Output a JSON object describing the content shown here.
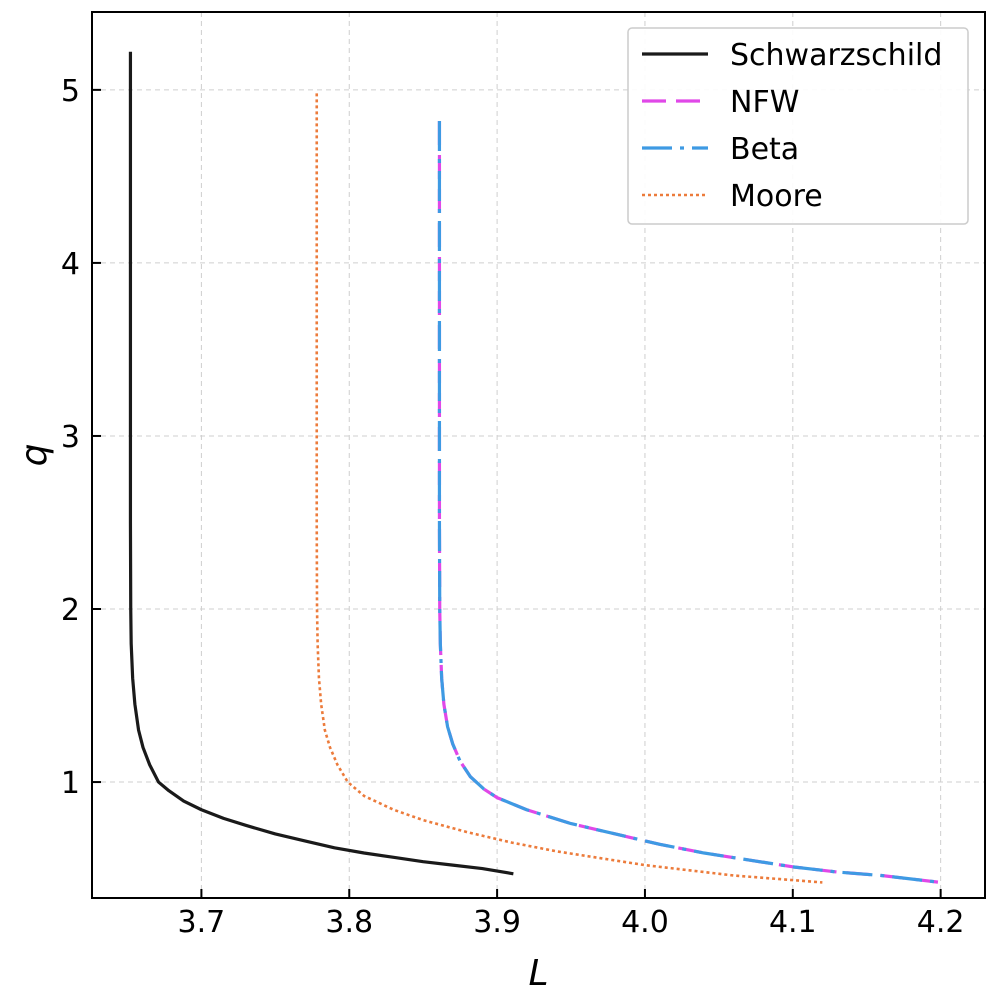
{
  "chart_data": {
    "type": "line",
    "xlabel": "L",
    "ylabel": "q",
    "xlim": [
      3.626,
      4.23
    ],
    "ylim": [
      0.33,
      5.45
    ],
    "grid": true,
    "legend_position": "top-right",
    "x_ticks": [
      "3.7",
      "3.8",
      "3.9",
      "4.0",
      "4.1",
      "4.2"
    ],
    "y_ticks": [
      "1",
      "2",
      "3",
      "4",
      "5"
    ],
    "series": [
      {
        "name": "Schwarzschild",
        "color": "#1a1a1a",
        "style": "solid",
        "x": [
          3.652,
          3.652,
          3.652,
          3.652,
          3.6522,
          3.6525,
          3.6535,
          3.655,
          3.6575,
          3.6605,
          3.665,
          3.671,
          3.678,
          3.688,
          3.7,
          3.715,
          3.73,
          3.75,
          3.77,
          3.79,
          3.81,
          3.83,
          3.85,
          3.87,
          3.89,
          3.911
        ],
        "y": [
          5.22,
          4.5,
          3.5,
          2.5,
          2.0,
          1.8,
          1.6,
          1.45,
          1.3,
          1.2,
          1.1,
          1.0,
          0.95,
          0.89,
          0.84,
          0.79,
          0.75,
          0.7,
          0.66,
          0.62,
          0.59,
          0.565,
          0.54,
          0.52,
          0.5,
          0.47
        ]
      },
      {
        "name": "NFW",
        "color": "#e048e8",
        "style": "dashed",
        "x": [
          3.861,
          3.861,
          3.861,
          3.861,
          3.8612,
          3.8616,
          3.8625,
          3.864,
          3.8665,
          3.87,
          3.875,
          3.882,
          3.891,
          3.9,
          3.92,
          3.95,
          3.98,
          4.01,
          4.04,
          4.07,
          4.1,
          4.13,
          4.16,
          4.2
        ],
        "y": [
          4.82,
          4.0,
          3.0,
          2.5,
          2.0,
          1.8,
          1.6,
          1.45,
          1.32,
          1.22,
          1.12,
          1.03,
          0.96,
          0.91,
          0.84,
          0.76,
          0.7,
          0.64,
          0.59,
          0.55,
          0.51,
          0.48,
          0.46,
          0.42
        ]
      },
      {
        "name": "Beta",
        "color": "#3e9ae3",
        "style": "dashdot",
        "x": [
          3.861,
          3.861,
          3.861,
          3.861,
          3.8612,
          3.8616,
          3.8625,
          3.864,
          3.8665,
          3.87,
          3.875,
          3.882,
          3.891,
          3.9,
          3.92,
          3.95,
          3.98,
          4.01,
          4.04,
          4.07,
          4.1,
          4.13,
          4.16,
          4.2
        ],
        "y": [
          4.82,
          4.0,
          3.0,
          2.5,
          2.0,
          1.8,
          1.6,
          1.45,
          1.32,
          1.22,
          1.12,
          1.03,
          0.96,
          0.91,
          0.84,
          0.76,
          0.7,
          0.64,
          0.59,
          0.55,
          0.51,
          0.48,
          0.46,
          0.42
        ]
      },
      {
        "name": "Moore",
        "color": "#ec7b3b",
        "style": "dotted",
        "x": [
          3.778,
          3.778,
          3.778,
          3.778,
          3.7782,
          3.7786,
          3.7795,
          3.781,
          3.7835,
          3.787,
          3.792,
          3.799,
          3.81,
          3.83,
          3.85,
          3.88,
          3.91,
          3.94,
          3.97,
          4.0,
          4.03,
          4.06,
          4.09,
          4.12
        ],
        "y": [
          4.98,
          4.0,
          3.0,
          2.5,
          2.0,
          1.8,
          1.6,
          1.45,
          1.3,
          1.2,
          1.1,
          1.0,
          0.92,
          0.84,
          0.78,
          0.71,
          0.65,
          0.6,
          0.56,
          0.52,
          0.49,
          0.46,
          0.44,
          0.42
        ]
      }
    ]
  }
}
